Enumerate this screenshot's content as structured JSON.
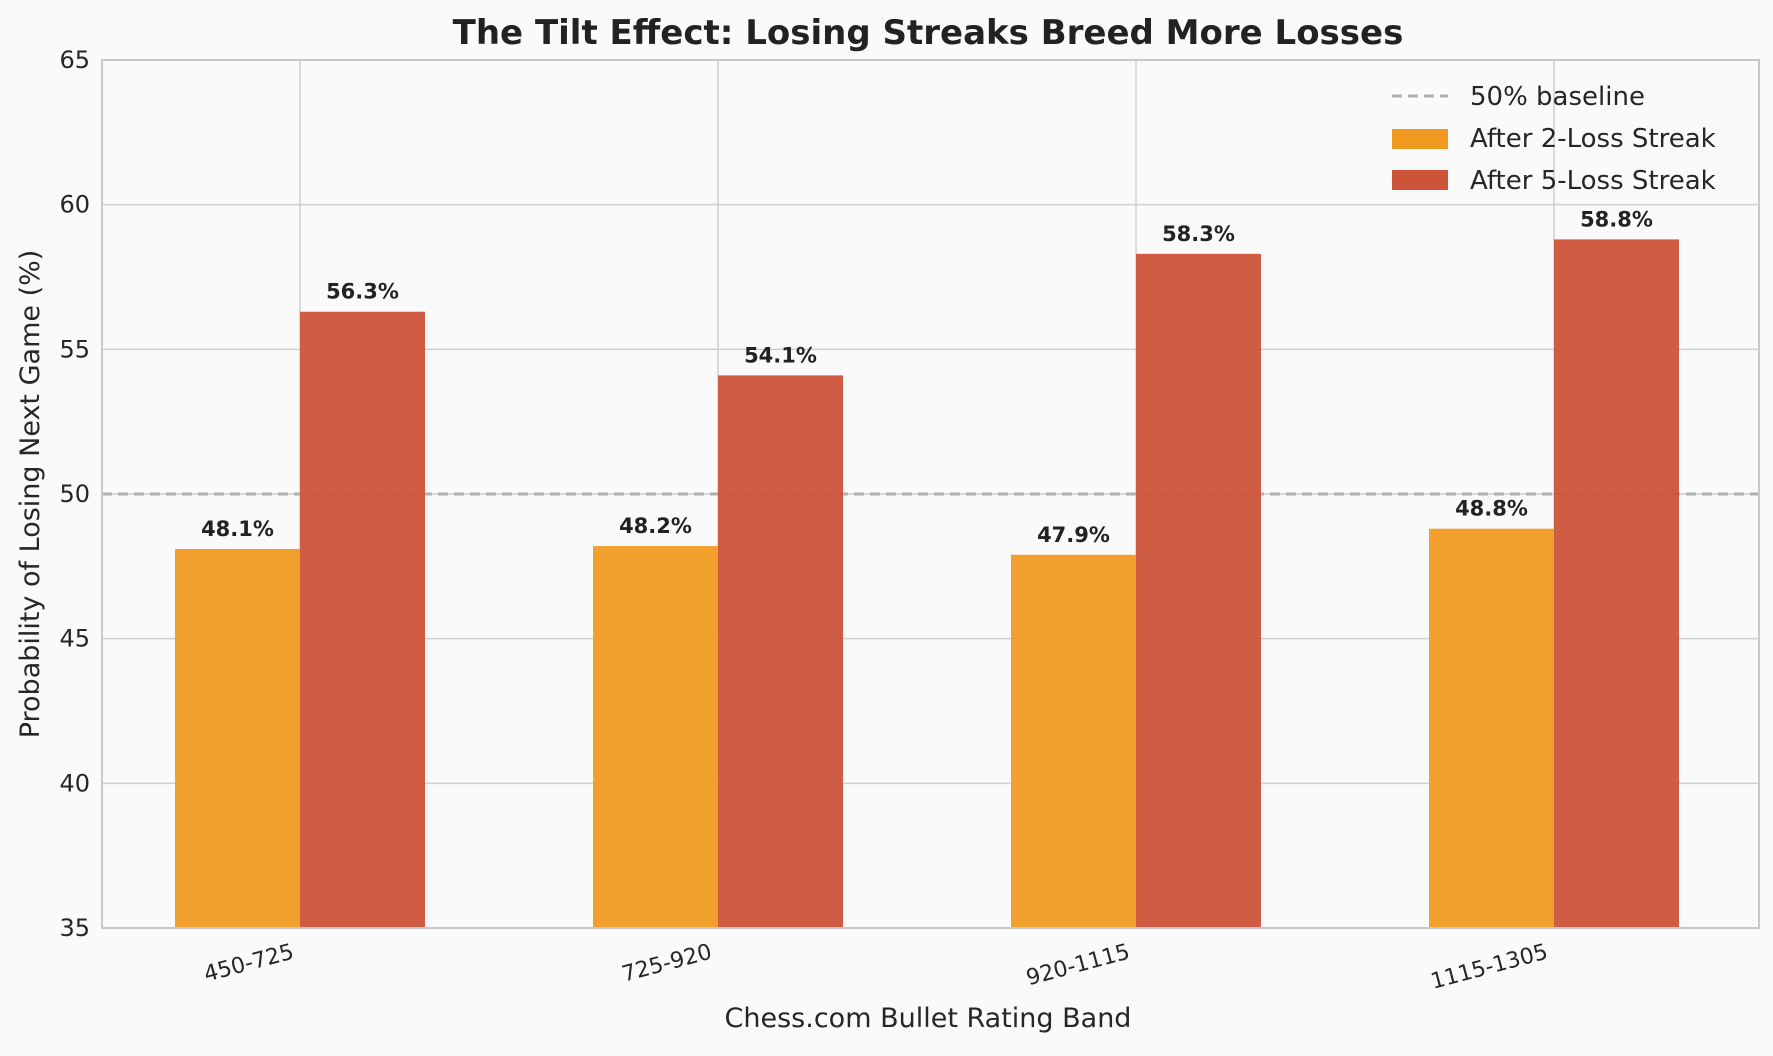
{
  "chart_data": {
    "type": "bar",
    "title": "The Tilt Effect: Losing Streaks Breed More Losses",
    "xlabel": "Chess.com Bullet Rating Band",
    "ylabel": "Probability of Losing Next Game (%)",
    "categories": [
      "450-725",
      "725-920",
      "920-1115",
      "1115-1305"
    ],
    "series": [
      {
        "name": "After 2-Loss Streak",
        "values": [
          48.1,
          48.2,
          47.9,
          48.8
        ],
        "labels": [
          "48.1%",
          "48.2%",
          "47.9%",
          "48.8%"
        ],
        "color": "#f09a22"
      },
      {
        "name": "After 5-Loss Streak",
        "values": [
          56.3,
          54.1,
          58.3,
          58.8
        ],
        "labels": [
          "56.3%",
          "54.1%",
          "58.3%",
          "58.8%"
        ],
        "color": "#cd5439"
      }
    ],
    "baseline": {
      "name": "50% baseline",
      "value": 50,
      "color": "#b0b0b0",
      "style": "dashed"
    },
    "ylim": [
      35,
      65
    ],
    "yticks": [
      35,
      40,
      45,
      50,
      55,
      60,
      65
    ],
    "grid": true,
    "legend_position": "top-right"
  }
}
